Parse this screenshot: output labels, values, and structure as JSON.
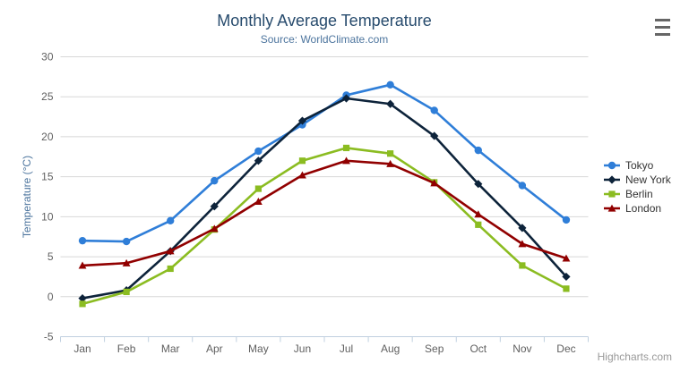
{
  "chart_data": {
    "type": "line",
    "title": "Monthly Average Temperature",
    "subtitle": "Source: WorldClimate.com",
    "ylabel": "Temperature (°C)",
    "ylim": [
      -5,
      30
    ],
    "ytick_step": 5,
    "grid": true,
    "legend_position": "right",
    "categories": [
      "Jan",
      "Feb",
      "Mar",
      "Apr",
      "May",
      "Jun",
      "Jul",
      "Aug",
      "Sep",
      "Oct",
      "Nov",
      "Dec"
    ],
    "series": [
      {
        "name": "Tokyo",
        "color": "#2f7ed8",
        "marker": "circle",
        "values": [
          7.0,
          6.9,
          9.5,
          14.5,
          18.2,
          21.5,
          25.2,
          26.5,
          23.3,
          18.3,
          13.9,
          9.6
        ]
      },
      {
        "name": "New York",
        "color": "#0d233a",
        "marker": "diamond",
        "values": [
          -0.2,
          0.8,
          5.7,
          11.3,
          17.0,
          22.0,
          24.8,
          24.1,
          20.1,
          14.1,
          8.6,
          2.5
        ]
      },
      {
        "name": "Berlin",
        "color": "#8bbc21",
        "marker": "square",
        "values": [
          -0.9,
          0.6,
          3.5,
          8.4,
          13.5,
          17.0,
          18.6,
          17.9,
          14.3,
          9.0,
          3.9,
          1.0
        ]
      },
      {
        "name": "London",
        "color": "#910000",
        "marker": "triangle",
        "values": [
          3.9,
          4.2,
          5.7,
          8.5,
          11.9,
          15.2,
          17.0,
          16.6,
          14.2,
          10.3,
          6.6,
          4.8
        ]
      }
    ]
  },
  "credits": "Highcharts.com",
  "colors": {
    "title": "#274b6d",
    "subtitle": "#4d759e",
    "axis_label": "#606060",
    "axis_title": "#4d759e",
    "grid_line": "#d8d8d8",
    "axis_line": "#c0d0e0",
    "tick": "#c0d0e0",
    "legend_text": "#333333",
    "credits": "#999999",
    "menu_icon": "#666666",
    "background": "#ffffff"
  }
}
